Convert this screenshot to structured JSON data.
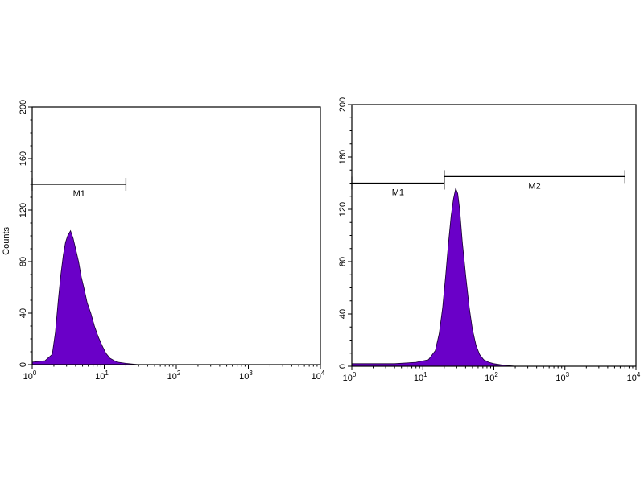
{
  "chart_data": [
    {
      "type": "area",
      "title": "",
      "xlabel": "",
      "ylabel": "Counts",
      "xscale": "log",
      "xlim": [
        1,
        10000
      ],
      "ylim": [
        0,
        200
      ],
      "y_ticks": [
        0,
        40,
        80,
        120,
        160,
        200
      ],
      "x_ticks": [
        {
          "base": "10",
          "exp": "0"
        },
        {
          "base": "10",
          "exp": "1"
        },
        {
          "base": "10",
          "exp": "2"
        },
        {
          "base": "10",
          "exp": "3"
        },
        {
          "base": "10",
          "exp": "4"
        }
      ],
      "fill_color": "#6a00c8",
      "series": [
        {
          "x": [
            1,
            1.5,
            1.9,
            2.1,
            2.3,
            2.5,
            2.7,
            2.9,
            3.1,
            3.4,
            3.7,
            4.0,
            4.4,
            4.8,
            5.2,
            5.8,
            6.5,
            7.3,
            8.2,
            9.3,
            10.5,
            12,
            15,
            20,
            30,
            100,
            1000,
            10000
          ],
          "y": [
            2,
            3,
            8,
            25,
            50,
            70,
            85,
            95,
            100,
            104,
            98,
            90,
            80,
            68,
            60,
            48,
            40,
            30,
            22,
            15,
            9,
            5,
            2,
            1,
            0,
            0,
            0,
            0
          ]
        }
      ],
      "gates": [
        {
          "label": "M1",
          "x_start": 1,
          "x_end": 20,
          "y": 140
        }
      ]
    },
    {
      "type": "area",
      "title": "",
      "xlabel": "",
      "ylabel": "",
      "xscale": "log",
      "xlim": [
        1,
        10000
      ],
      "ylim": [
        0,
        200
      ],
      "y_ticks": [
        0,
        40,
        80,
        120,
        160,
        200
      ],
      "x_ticks": [
        {
          "base": "10",
          "exp": "0"
        },
        {
          "base": "10",
          "exp": "1"
        },
        {
          "base": "10",
          "exp": "2"
        },
        {
          "base": "10",
          "exp": "3"
        },
        {
          "base": "10",
          "exp": "4"
        }
      ],
      "fill_color": "#6a00c8",
      "series": [
        {
          "x": [
            1,
            2,
            4,
            8,
            12,
            15,
            17,
            19,
            21,
            23,
            25,
            27,
            29,
            31,
            33,
            36,
            40,
            45,
            50,
            56,
            63,
            72,
            85,
            100,
            130,
            200,
            1000,
            10000
          ],
          "y": [
            2,
            2,
            2,
            3,
            5,
            12,
            25,
            45,
            70,
            95,
            115,
            128,
            136,
            132,
            120,
            95,
            70,
            45,
            28,
            16,
            9,
            5,
            3,
            2,
            1,
            0,
            0,
            0
          ]
        }
      ],
      "gates": [
        {
          "label": "M1",
          "x_start": 1,
          "x_end": 20,
          "y": 140
        },
        {
          "label": "M2",
          "x_start": 20,
          "x_end": 7000,
          "y": 145
        }
      ]
    }
  ]
}
